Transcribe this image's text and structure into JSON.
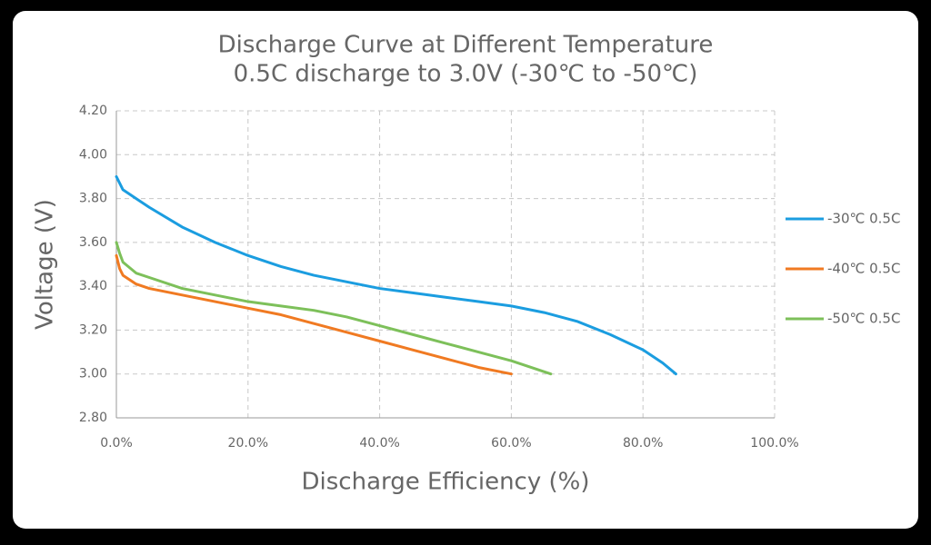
{
  "chart_data": {
    "type": "line",
    "title": "Discharge Curve at Different Temperature",
    "subtitle": "0.5C discharge to 3.0V (-30℃ to -50℃)",
    "x_label": "Discharge Efficiency (%)",
    "y_label": "Voltage   (V)",
    "xlim": [
      0,
      100
    ],
    "xticks": [
      {
        "value": 0,
        "label": "0.0%"
      },
      {
        "value": 20,
        "label": "20.0%"
      },
      {
        "value": 40,
        "label": "40.0%"
      },
      {
        "value": 60,
        "label": "60.0%"
      },
      {
        "value": 80,
        "label": "80.0%"
      },
      {
        "value": 100,
        "label": "100.0%"
      }
    ],
    "ylim": [
      2.8,
      4.2
    ],
    "yticks": [
      {
        "value": 2.8,
        "label": "2.80"
      },
      {
        "value": 3.0,
        "label": "3.00"
      },
      {
        "value": 3.2,
        "label": "3.20"
      },
      {
        "value": 3.4,
        "label": "3.40"
      },
      {
        "value": 3.6,
        "label": "3.60"
      },
      {
        "value": 3.8,
        "label": "3.80"
      },
      {
        "value": 4.0,
        "label": "4.00"
      },
      {
        "value": 4.2,
        "label": "4.20"
      }
    ],
    "grid": true,
    "legend": "right",
    "series": [
      {
        "name": "-30℃ 0.5C",
        "color": "#1b9de0",
        "x": [
          0,
          1,
          3,
          5,
          10,
          15,
          20,
          25,
          30,
          35,
          40,
          45,
          50,
          55,
          60,
          65,
          70,
          75,
          80,
          83,
          85
        ],
        "values": [
          3.9,
          3.84,
          3.8,
          3.76,
          3.67,
          3.6,
          3.54,
          3.49,
          3.45,
          3.42,
          3.39,
          3.37,
          3.35,
          3.33,
          3.31,
          3.28,
          3.24,
          3.18,
          3.11,
          3.05,
          3.0
        ]
      },
      {
        "name": "-40℃ 0.5C",
        "color": "#f07a22",
        "x": [
          0,
          0.5,
          1,
          3,
          5,
          10,
          15,
          20,
          25,
          30,
          35,
          40,
          45,
          50,
          55,
          60
        ],
        "values": [
          3.54,
          3.48,
          3.45,
          3.41,
          3.39,
          3.36,
          3.33,
          3.3,
          3.27,
          3.23,
          3.19,
          3.15,
          3.11,
          3.07,
          3.03,
          3.0
        ]
      },
      {
        "name": "-50℃ 0.5C",
        "color": "#7dc05a",
        "x": [
          0,
          0.5,
          1,
          3,
          5,
          10,
          15,
          20,
          25,
          30,
          35,
          40,
          45,
          50,
          55,
          60,
          63,
          66
        ],
        "values": [
          3.6,
          3.55,
          3.51,
          3.46,
          3.44,
          3.39,
          3.36,
          3.33,
          3.31,
          3.29,
          3.26,
          3.22,
          3.18,
          3.14,
          3.1,
          3.06,
          3.03,
          3.0
        ]
      }
    ]
  }
}
